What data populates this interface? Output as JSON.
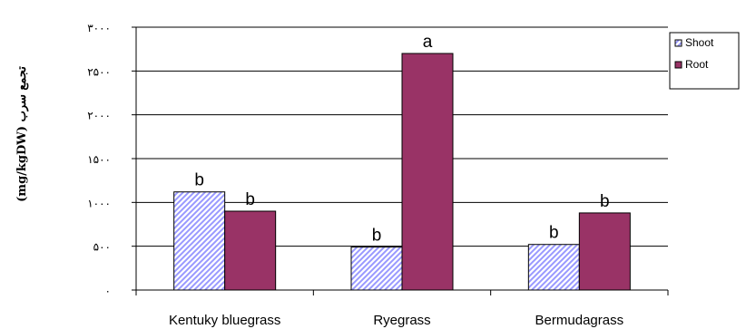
{
  "chart_data": {
    "type": "bar",
    "categories": [
      "Kentuky bluegrass",
      "Ryegrass",
      "Bermudagrass"
    ],
    "series": [
      {
        "name": "Shoot",
        "values": [
          1120,
          490,
          520
        ],
        "labels": [
          "b",
          "b",
          "b"
        ],
        "color": "#9999ff",
        "pattern": "diagonal-hatch"
      },
      {
        "name": "Root",
        "values": [
          900,
          2700,
          880
        ],
        "labels": [
          "b",
          "a",
          "b"
        ],
        "color": "#993366"
      }
    ],
    "ylabel": "تجمع سرب (mg/kgDW)",
    "ylim": [
      0,
      3000
    ],
    "yticks": [
      0,
      500,
      1000,
      1500,
      2000,
      2500,
      3000
    ],
    "ytick_labels": [
      "۰",
      "۵۰۰",
      "۱۰۰۰",
      "۱۵۰۰",
      "۲۰۰۰",
      "۲۵۰۰",
      "۳۰۰۰"
    ],
    "grid": true,
    "legend": "right"
  }
}
